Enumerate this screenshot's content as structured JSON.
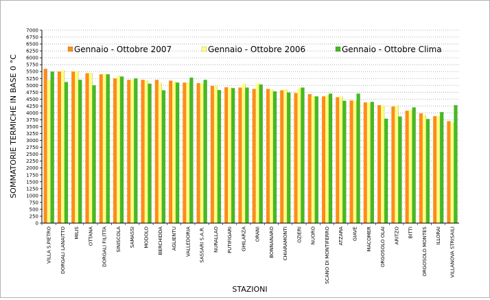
{
  "chart_data": {
    "type": "bar",
    "title": "",
    "xlabel": "STAZIONI",
    "ylabel": "SOMMATORIE TERMICHE IN BASE 0 °C",
    "ylim": [
      0,
      7000
    ],
    "yticks": [
      0,
      250,
      500,
      750,
      1000,
      1250,
      1500,
      1750,
      2000,
      2250,
      2500,
      2750,
      3000,
      3250,
      3500,
      3750,
      4000,
      4250,
      4500,
      4750,
      5000,
      5250,
      5500,
      5750,
      6000,
      6250,
      6500,
      6750,
      7000
    ],
    "grid": true,
    "legend_position": "top",
    "categories": [
      "VILLA S.PIETRO",
      "DORGALI LANAITTO",
      "MILIS",
      "OTTANA",
      "DORGALI FILITTA",
      "SINISCOLA",
      "SAMASSI",
      "MODOLO",
      "BERCHIDDA",
      "AGLIENTU",
      "VALLEDORIA",
      "SASSARI S.A.R.",
      "NURALLAO",
      "PUTIFIGARI",
      "GHILARZA",
      "ORANI",
      "BONNANARO",
      "CHIARAMONTI",
      "OZIERI",
      "NUORO",
      "SCANO DI MONTIFERRO",
      "ATZARA",
      "GIAVE",
      "MACOMER",
      "ORGOSOLO OLAI",
      "ARITZO",
      "BITTI",
      "ORGOSOLO MONTES",
      "ILLORAI",
      "VILLANOVA STRISAILI"
    ],
    "series": [
      {
        "name": "Gennaio - Ottobre 2007",
        "color": "#ff8c1a",
        "values": [
          5600,
          5500,
          5500,
          5440,
          5400,
          5250,
          5200,
          5200,
          5200,
          5170,
          5100,
          5080,
          4980,
          4930,
          4920,
          4870,
          4870,
          4820,
          4720,
          4680,
          4600,
          4570,
          4450,
          4380,
          4280,
          4230,
          4080,
          3980,
          3880,
          3700
        ]
      },
      {
        "name": "Gennaio - Ottobre 2006",
        "color": "#ffff80",
        "values": [
          5200,
          5550,
          5520,
          5450,
          5420,
          5350,
          5200,
          5180,
          5100,
          5130,
          5100,
          5060,
          4980,
          4920,
          5050,
          5070,
          4850,
          4860,
          4900,
          4620,
          4640,
          4600,
          4450,
          4370,
          4270,
          4280,
          4100,
          3930,
          3900,
          3650
        ]
      },
      {
        "name": "Gennaio - Ottobre Clima",
        "color": "#44bb22",
        "values": [
          5500,
          5120,
          5200,
          5000,
          5400,
          5320,
          5250,
          5060,
          4820,
          5100,
          5280,
          5200,
          4830,
          4900,
          4920,
          5030,
          4780,
          4740,
          4920,
          4600,
          4700,
          4440,
          4700,
          4400,
          3790,
          3870,
          4200,
          3780,
          4030,
          4280
        ]
      }
    ]
  }
}
